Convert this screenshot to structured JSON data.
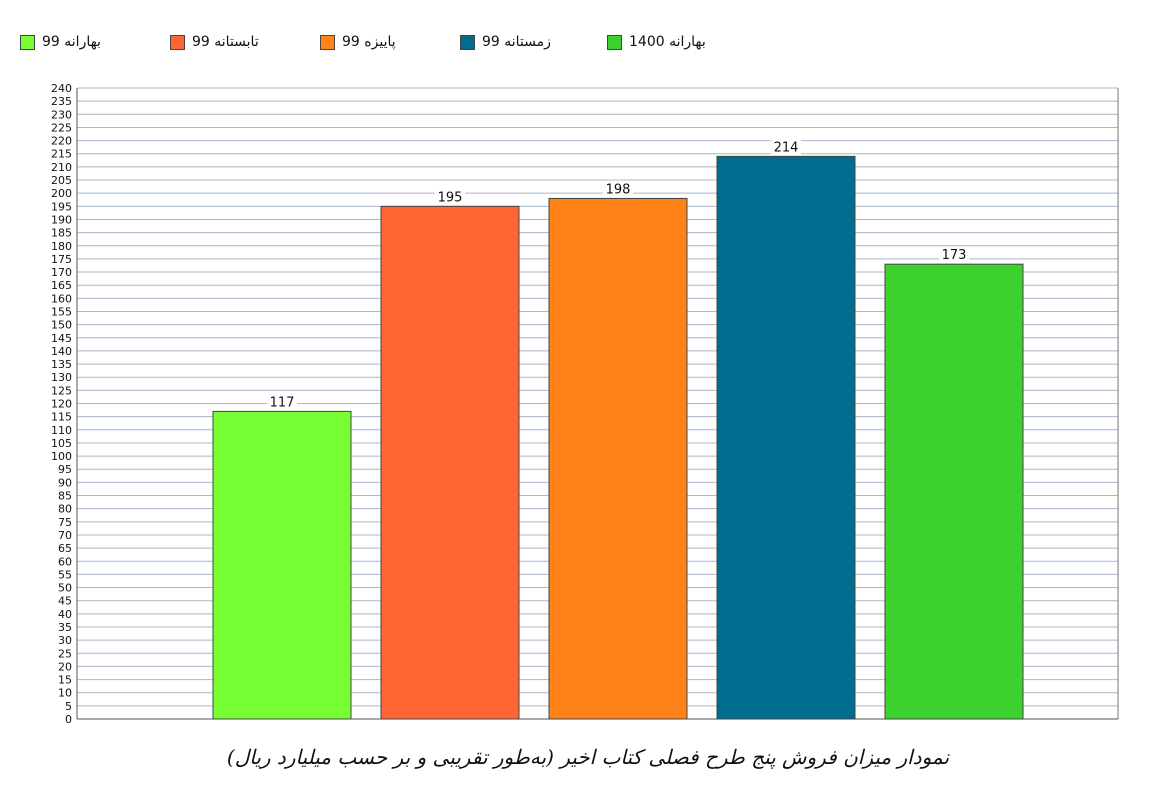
{
  "chart_data": {
    "type": "bar",
    "title": "نمودار میزان فروش پنج طرح فصلی کتاب اخیر (به‌طور تقریبی و بر حسب میلیارد ریال)",
    "categories": [
      "بهارانه 99",
      "تابستانه 99",
      "پاییزه 99",
      "زمستانه 99",
      "بهارانه 1400"
    ],
    "values": [
      117,
      195,
      198,
      214,
      173
    ],
    "colors": [
      "#77ff33",
      "#ff6633",
      "#ff8318",
      "#006d8f",
      "#3dd12f"
    ],
    "ylim": [
      0,
      240
    ],
    "ytick_step": 5,
    "grid": true,
    "legend_position": "top-left",
    "xlabel": "",
    "ylabel": ""
  }
}
